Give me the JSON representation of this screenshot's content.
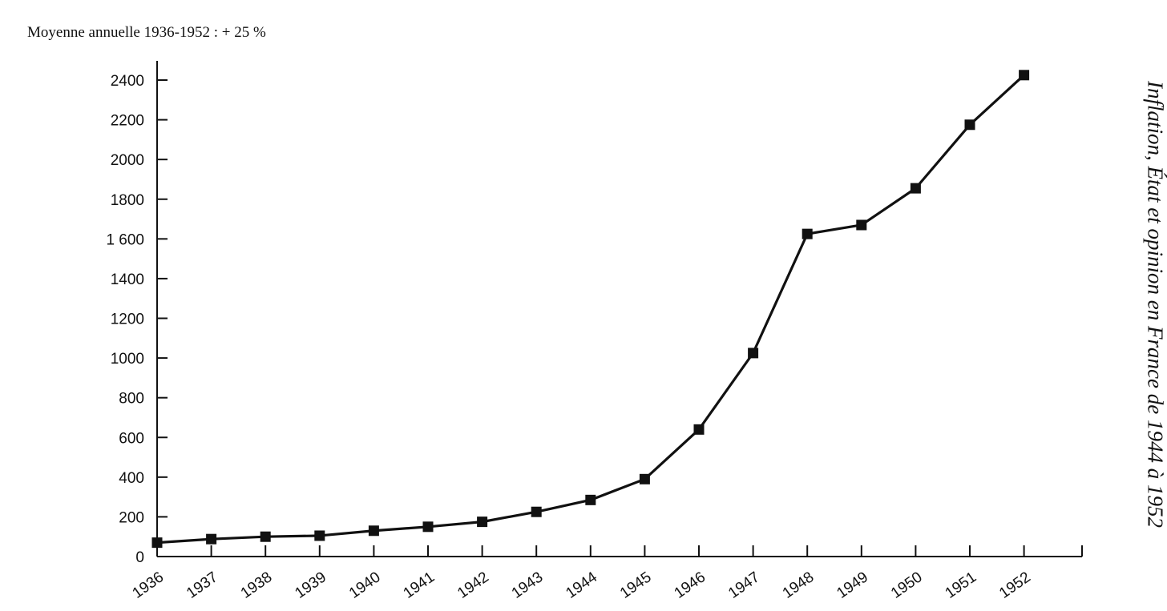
{
  "subtitle": "Moyenne annuelle 1936-1952 : + 25 %",
  "side_title": "Inflation, État et opinion en France de 1944 à 1952",
  "chart_data": {
    "type": "line",
    "x": [
      "1936",
      "1937",
      "1938",
      "1939",
      "1940",
      "1941",
      "1942",
      "1943",
      "1944",
      "1945",
      "1946",
      "1947",
      "1948",
      "1949",
      "1950",
      "1951",
      "1952"
    ],
    "series": [
      {
        "values": [
          70,
          88,
          100,
          105,
          130,
          150,
          175,
          225,
          285,
          390,
          640,
          1025,
          1625,
          1670,
          1855,
          2175,
          2425
        ]
      }
    ],
    "yticks": [
      {
        "value": 0,
        "label": "0"
      },
      {
        "value": 200,
        "label": "200"
      },
      {
        "value": 400,
        "label": "400"
      },
      {
        "value": 600,
        "label": "600"
      },
      {
        "value": 800,
        "label": "800"
      },
      {
        "value": 1000,
        "label": "1000"
      },
      {
        "value": 1200,
        "label": "1200"
      },
      {
        "value": 1400,
        "label": "1400"
      },
      {
        "value": 1600,
        "label": "1 600"
      },
      {
        "value": 1800,
        "label": "1800"
      },
      {
        "value": 2000,
        "label": "2000"
      },
      {
        "value": 2200,
        "label": "2200"
      },
      {
        "value": 2400,
        "label": "2400"
      }
    ],
    "ylim": [
      0,
      2500
    ],
    "grid": false,
    "marker": "square",
    "line_color": "#111111"
  }
}
